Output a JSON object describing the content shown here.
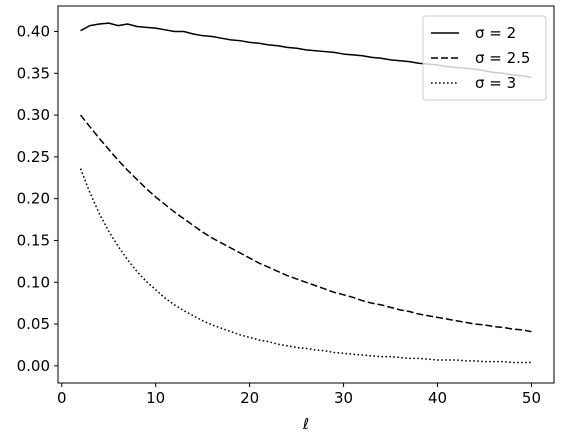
{
  "chart_data": {
    "type": "line",
    "title": "",
    "xlabel": "ℓ",
    "ylabel": "",
    "xlim": [
      -0.4,
      52.4
    ],
    "ylim": [
      -0.0205,
      0.4305
    ],
    "xticks": [
      0,
      10,
      20,
      30,
      40,
      50
    ],
    "yticks": [
      0.0,
      0.05,
      0.1,
      0.15,
      0.2,
      0.25,
      0.3,
      0.35,
      0.4
    ],
    "xtick_labels": [
      "0",
      "10",
      "20",
      "30",
      "40",
      "50"
    ],
    "ytick_labels": [
      "0.00",
      "0.05",
      "0.10",
      "0.15",
      "0.20",
      "0.25",
      "0.30",
      "0.35",
      "0.40"
    ],
    "grid": false,
    "legend_position": "top-right",
    "series": [
      {
        "name": "σ = 2",
        "linestyle": "solid",
        "color": "#000000",
        "x": [
          2,
          3,
          4,
          5,
          6,
          7,
          8,
          9,
          10,
          11,
          12,
          13,
          14,
          15,
          16,
          17,
          18,
          19,
          20,
          21,
          22,
          23,
          24,
          25,
          26,
          27,
          28,
          29,
          30,
          31,
          32,
          33,
          34,
          35,
          36,
          37,
          38,
          39,
          40,
          41,
          42,
          43,
          44,
          45,
          46,
          47,
          48,
          49,
          50
        ],
        "values": [
          0.401,
          0.407,
          0.409,
          0.41,
          0.407,
          0.409,
          0.406,
          0.405,
          0.404,
          0.402,
          0.4,
          0.4,
          0.397,
          0.395,
          0.394,
          0.392,
          0.39,
          0.389,
          0.387,
          0.386,
          0.384,
          0.383,
          0.381,
          0.38,
          0.378,
          0.377,
          0.376,
          0.375,
          0.373,
          0.372,
          0.371,
          0.369,
          0.368,
          0.366,
          0.365,
          0.364,
          0.362,
          0.361,
          0.36,
          0.358,
          0.357,
          0.356,
          0.355,
          0.353,
          0.351,
          0.35,
          0.348,
          0.347,
          0.345
        ]
      },
      {
        "name": "σ = 2.5",
        "linestyle": "dashed",
        "color": "#000000",
        "x": [
          2,
          3,
          4,
          5,
          6,
          7,
          8,
          9,
          10,
          11,
          12,
          13,
          14,
          15,
          16,
          17,
          18,
          19,
          20,
          21,
          22,
          23,
          24,
          25,
          26,
          27,
          28,
          29,
          30,
          31,
          32,
          33,
          34,
          35,
          36,
          37,
          38,
          39,
          40,
          41,
          42,
          43,
          44,
          45,
          46,
          47,
          48,
          49,
          50
        ],
        "values": [
          0.3,
          0.286,
          0.272,
          0.259,
          0.246,
          0.234,
          0.223,
          0.212,
          0.202,
          0.193,
          0.184,
          0.176,
          0.168,
          0.16,
          0.153,
          0.147,
          0.141,
          0.135,
          0.129,
          0.123,
          0.118,
          0.113,
          0.108,
          0.104,
          0.1,
          0.096,
          0.092,
          0.088,
          0.085,
          0.082,
          0.078,
          0.075,
          0.073,
          0.07,
          0.067,
          0.065,
          0.062,
          0.06,
          0.058,
          0.056,
          0.054,
          0.052,
          0.05,
          0.049,
          0.047,
          0.046,
          0.044,
          0.043,
          0.041
        ]
      },
      {
        "name": "σ = 3",
        "linestyle": "dotted",
        "color": "#000000",
        "x": [
          2,
          3,
          4,
          5,
          6,
          7,
          8,
          9,
          10,
          11,
          12,
          13,
          14,
          15,
          16,
          17,
          18,
          19,
          20,
          21,
          22,
          23,
          24,
          25,
          26,
          27,
          28,
          29,
          30,
          31,
          32,
          33,
          34,
          35,
          36,
          37,
          38,
          39,
          40,
          41,
          42,
          43,
          44,
          45,
          46,
          47,
          48,
          49,
          50
        ],
        "values": [
          0.236,
          0.207,
          0.182,
          0.161,
          0.143,
          0.127,
          0.113,
          0.101,
          0.091,
          0.081,
          0.073,
          0.066,
          0.06,
          0.054,
          0.049,
          0.045,
          0.041,
          0.037,
          0.034,
          0.031,
          0.029,
          0.026,
          0.024,
          0.022,
          0.021,
          0.019,
          0.018,
          0.016,
          0.015,
          0.014,
          0.013,
          0.012,
          0.011,
          0.011,
          0.01,
          0.009,
          0.009,
          0.008,
          0.007,
          0.007,
          0.007,
          0.006,
          0.006,
          0.005,
          0.005,
          0.005,
          0.004,
          0.004,
          0.004
        ]
      }
    ]
  }
}
